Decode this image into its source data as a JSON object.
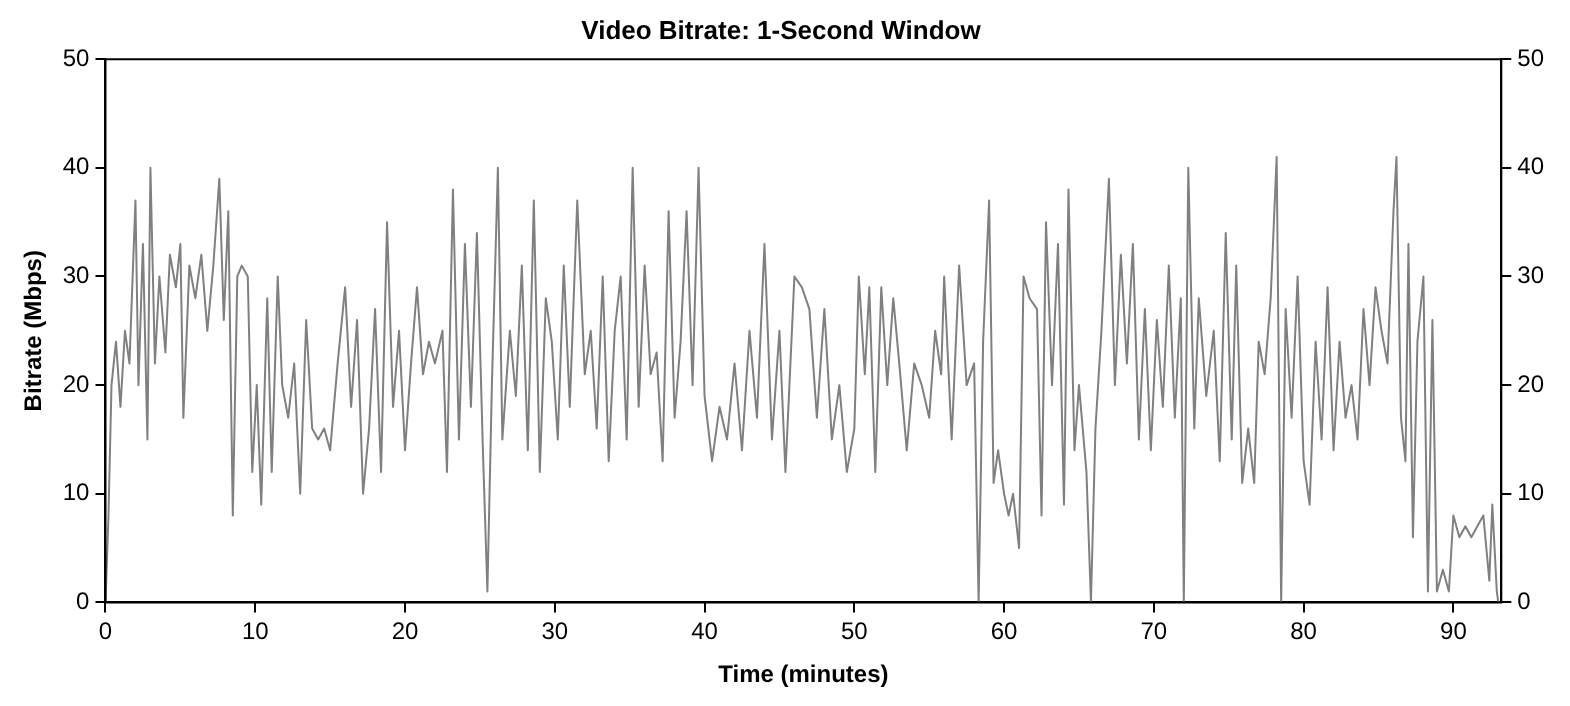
{
  "chart_data": {
    "type": "line",
    "title": "Video Bitrate: 1-Second Window",
    "xlabel": "Time (minutes)",
    "ylabel": "Bitrate (Mbps)",
    "x": [
      0,
      0.2,
      0.4,
      0.7,
      1,
      1.3,
      1.6,
      2,
      2.2,
      2.5,
      2.8,
      3,
      3.3,
      3.6,
      4,
      4.3,
      4.7,
      5,
      5.2,
      5.6,
      6,
      6.4,
      6.8,
      7.2,
      7.6,
      7.9,
      8.2,
      8.5,
      8.8,
      9.1,
      9.5,
      9.8,
      10.1,
      10.4,
      10.8,
      11.1,
      11.5,
      11.8,
      12.2,
      12.6,
      13,
      13.4,
      13.8,
      14.2,
      14.6,
      15,
      15.5,
      16,
      16.4,
      16.8,
      17.2,
      17.6,
      18,
      18.4,
      18.8,
      19.2,
      19.6,
      20,
      20.4,
      20.8,
      21.2,
      21.6,
      22,
      22.5,
      22.8,
      23.2,
      23.6,
      24,
      24.4,
      24.8,
      25.2,
      25.5,
      25.8,
      26.2,
      26.5,
      27,
      27.4,
      27.8,
      28.2,
      28.6,
      29,
      29.4,
      29.8,
      30.2,
      30.6,
      31,
      31.5,
      32,
      32.4,
      32.8,
      33.2,
      33.6,
      34,
      34.4,
      34.8,
      35.2,
      35.6,
      36,
      36.4,
      36.8,
      37.2,
      37.6,
      38,
      38.4,
      38.8,
      39.2,
      39.6,
      40,
      40.5,
      41,
      41.5,
      42,
      42.5,
      43,
      43.5,
      44,
      44.5,
      45,
      45.4,
      46,
      46.5,
      47,
      47.5,
      48,
      48.5,
      49,
      49.5,
      50,
      50.3,
      50.7,
      51,
      51.4,
      51.8,
      52.2,
      52.6,
      53,
      53.5,
      54,
      54.5,
      55,
      55.4,
      55.8,
      56,
      56.5,
      57,
      57.5,
      58,
      58.3,
      58.6,
      59,
      59.3,
      59.6,
      60,
      60.3,
      60.6,
      61,
      61.3,
      61.7,
      62.2,
      62.5,
      62.8,
      63.2,
      63.6,
      64,
      64.3,
      64.7,
      65,
      65.5,
      65.8,
      66.1,
      66.5,
      67,
      67.4,
      67.8,
      68.2,
      68.6,
      69,
      69.4,
      69.8,
      70.2,
      70.6,
      71,
      71.4,
      71.8,
      72,
      72.3,
      72.7,
      73,
      73.5,
      74,
      74.4,
      74.8,
      75.2,
      75.5,
      75.9,
      76.3,
      76.7,
      77,
      77.4,
      77.8,
      78.2,
      78.5,
      78.8,
      79.2,
      79.6,
      80,
      80.4,
      80.8,
      81.2,
      81.6,
      82,
      82.4,
      82.8,
      83.2,
      83.6,
      84,
      84.4,
      84.8,
      85.2,
      85.6,
      86,
      86.2,
      86.5,
      86.8,
      87,
      87.3,
      87.6,
      88,
      88.3,
      88.6,
      88.9,
      89.3,
      89.7,
      90,
      90.4,
      90.8,
      91.2,
      91.6,
      92,
      92.4,
      92.6,
      92.9,
      93
    ],
    "series": [
      {
        "color": "#808080",
        "values": [
          0,
          8,
          20,
          24,
          18,
          25,
          22,
          37,
          20,
          33,
          15,
          40,
          22,
          30,
          23,
          32,
          29,
          33,
          17,
          31,
          28,
          32,
          25,
          31,
          39,
          26,
          36,
          8,
          30,
          31,
          30,
          12,
          20,
          9,
          28,
          12,
          30,
          20,
          17,
          22,
          10,
          26,
          16,
          15,
          16,
          14,
          22,
          29,
          18,
          26,
          10,
          16,
          27,
          12,
          35,
          18,
          25,
          14,
          22,
          29,
          21,
          24,
          22,
          25,
          12,
          38,
          15,
          33,
          18,
          34,
          14,
          1,
          20,
          40,
          15,
          25,
          19,
          31,
          14,
          37,
          12,
          28,
          24,
          15,
          31,
          18,
          37,
          21,
          25,
          16,
          30,
          13,
          25,
          30,
          15,
          40,
          18,
          31,
          21,
          23,
          13,
          36,
          17,
          24,
          36,
          20,
          40,
          19,
          13,
          18,
          15,
          22,
          14,
          25,
          17,
          33,
          15,
          25,
          12,
          30,
          29,
          27,
          17,
          27,
          15,
          20,
          12,
          16,
          30,
          21,
          29,
          12,
          29,
          20,
          28,
          22,
          14,
          22,
          20,
          17,
          25,
          21,
          30,
          15,
          31,
          20,
          22,
          0,
          24,
          37,
          11,
          14,
          10,
          8,
          10,
          5,
          30,
          28,
          27,
          8,
          35,
          20,
          33,
          9,
          38,
          14,
          20,
          12,
          0,
          16,
          25,
          39,
          20,
          32,
          22,
          33,
          15,
          27,
          14,
          26,
          18,
          31,
          17,
          28,
          0,
          40,
          16,
          28,
          19,
          25,
          13,
          34,
          15,
          31,
          11,
          16,
          11,
          24,
          21,
          28,
          41,
          0,
          27,
          17,
          30,
          13,
          9,
          24,
          15,
          29,
          14,
          24,
          17,
          20,
          15,
          27,
          20,
          29,
          25,
          22,
          36,
          41,
          17,
          13,
          33,
          6,
          24,
          30,
          1,
          26,
          1,
          3,
          1,
          8,
          6,
          7,
          6,
          7,
          8,
          2,
          9,
          1,
          0
        ]
      }
    ],
    "xlim": [
      0,
      93.2
    ],
    "xticks": [
      0,
      10,
      20,
      30,
      40,
      50,
      60,
      70,
      80,
      90
    ],
    "ylim": [
      0,
      50
    ],
    "yticks": [
      0,
      10,
      20,
      30,
      40,
      50
    ],
    "y2lim": [
      0,
      50
    ],
    "y2ticks": [
      0,
      10,
      20,
      30,
      40,
      50
    ],
    "grid": false,
    "legend": false,
    "marker": "none",
    "line_style": "solid"
  }
}
